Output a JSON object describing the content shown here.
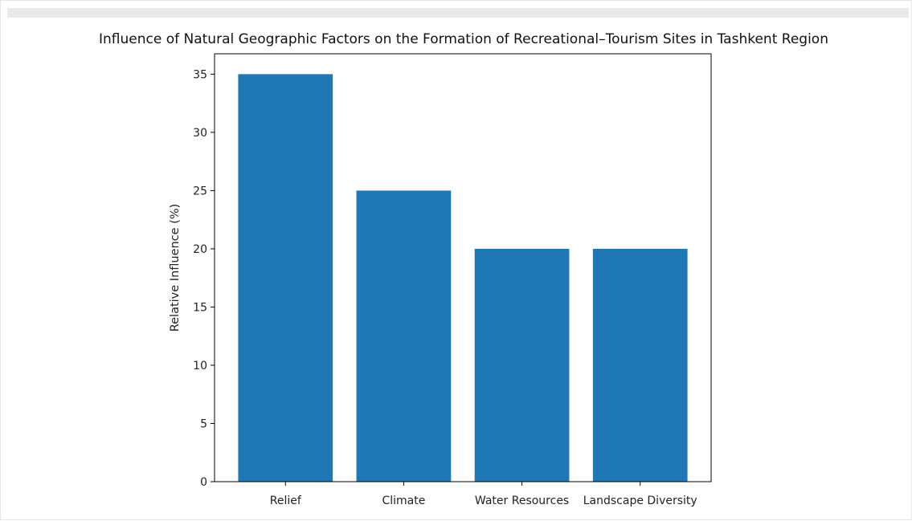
{
  "chart_data": {
    "type": "bar",
    "title": "Influence of Natural Geographic Factors on the Formation of Recreational–Tourism Sites in Tashkent Region",
    "xlabel": "",
    "ylabel": "Relative Influence (%)",
    "categories": [
      "Relief",
      "Climate",
      "Water Resources",
      "Landscape Diversity"
    ],
    "values": [
      35,
      25,
      20,
      20
    ],
    "ylim": [
      0,
      36.75
    ],
    "yticks": [
      0,
      5,
      10,
      15,
      20,
      25,
      30,
      35
    ],
    "bar_color": "#1f77b4",
    "grid": false,
    "legend": "none"
  }
}
